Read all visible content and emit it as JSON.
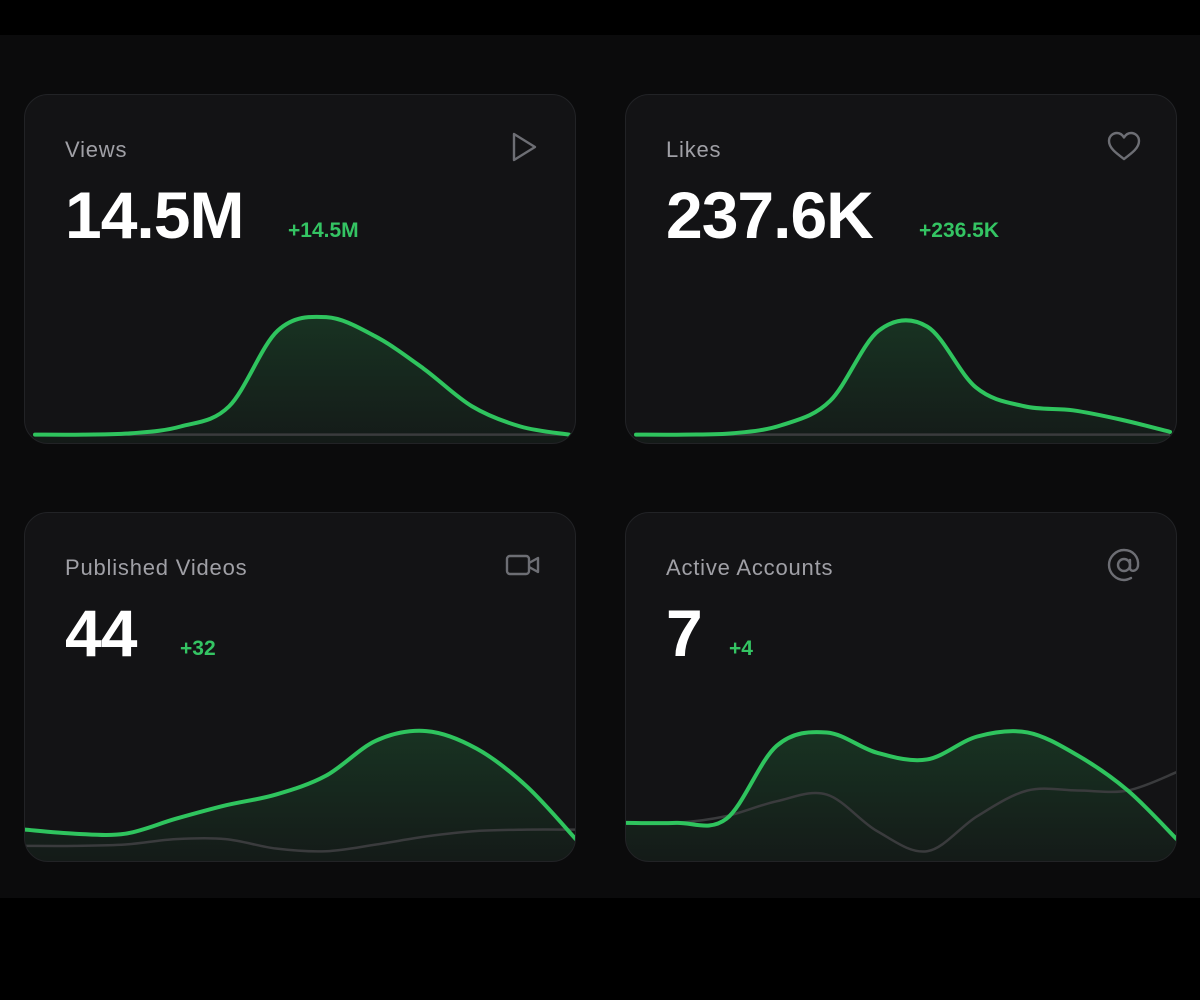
{
  "colors": {
    "accent": "#2fc45e",
    "delta": "#34c463",
    "secondary_line": "#3a3b3d",
    "card": "#131315"
  },
  "cards": [
    {
      "label": "Views",
      "value": "14.5M",
      "delta": "+14.5M",
      "icon": "play-icon"
    },
    {
      "label": "Likes",
      "value": "237.6K",
      "delta": "+236.5K",
      "icon": "heart-icon"
    },
    {
      "label": "Published Videos",
      "value": "44",
      "delta": "+32",
      "icon": "video-camera-icon"
    },
    {
      "label": "Active Accounts",
      "value": "7",
      "delta": "+4",
      "icon": "at-sign-icon"
    }
  ],
  "chart_data": [
    {
      "type": "area",
      "series": [
        {
          "values": [
            0.04,
            0.04,
            0.05,
            0.1,
            0.25,
            0.81,
            0.91,
            0.77,
            0.53,
            0.25,
            0.1,
            0.04
          ]
        },
        {
          "values": [
            0.04,
            0.04,
            0.04,
            0.04,
            0.04,
            0.04,
            0.04,
            0.04,
            0.04,
            0.04,
            0.04,
            0.04
          ]
        }
      ]
    },
    {
      "type": "area",
      "series": [
        {
          "values": [
            0.04,
            0.04,
            0.05,
            0.11,
            0.29,
            0.81,
            0.84,
            0.39,
            0.25,
            0.22,
            0.15,
            0.06
          ]
        },
        {
          "values": [
            0.04,
            0.04,
            0.04,
            0.04,
            0.04,
            0.04,
            0.04,
            0.04,
            0.04,
            0.04,
            0.04,
            0.04
          ]
        }
      ]
    },
    {
      "type": "area",
      "series": [
        {
          "values": [
            0.21,
            0.18,
            0.18,
            0.29,
            0.39,
            0.47,
            0.61,
            0.87,
            0.94,
            0.81,
            0.53,
            0.13
          ]
        },
        {
          "values": [
            0.09,
            0.09,
            0.1,
            0.14,
            0.14,
            0.07,
            0.05,
            0.1,
            0.16,
            0.2,
            0.21,
            0.21
          ]
        }
      ]
    },
    {
      "type": "area",
      "series": [
        {
          "values": [
            0.26,
            0.26,
            0.29,
            0.83,
            0.93,
            0.78,
            0.73,
            0.9,
            0.93,
            0.76,
            0.5,
            0.13
          ]
        },
        {
          "values": [
            0.26,
            0.26,
            0.31,
            0.42,
            0.47,
            0.2,
            0.05,
            0.31,
            0.5,
            0.5,
            0.5,
            0.64
          ]
        }
      ]
    }
  ]
}
